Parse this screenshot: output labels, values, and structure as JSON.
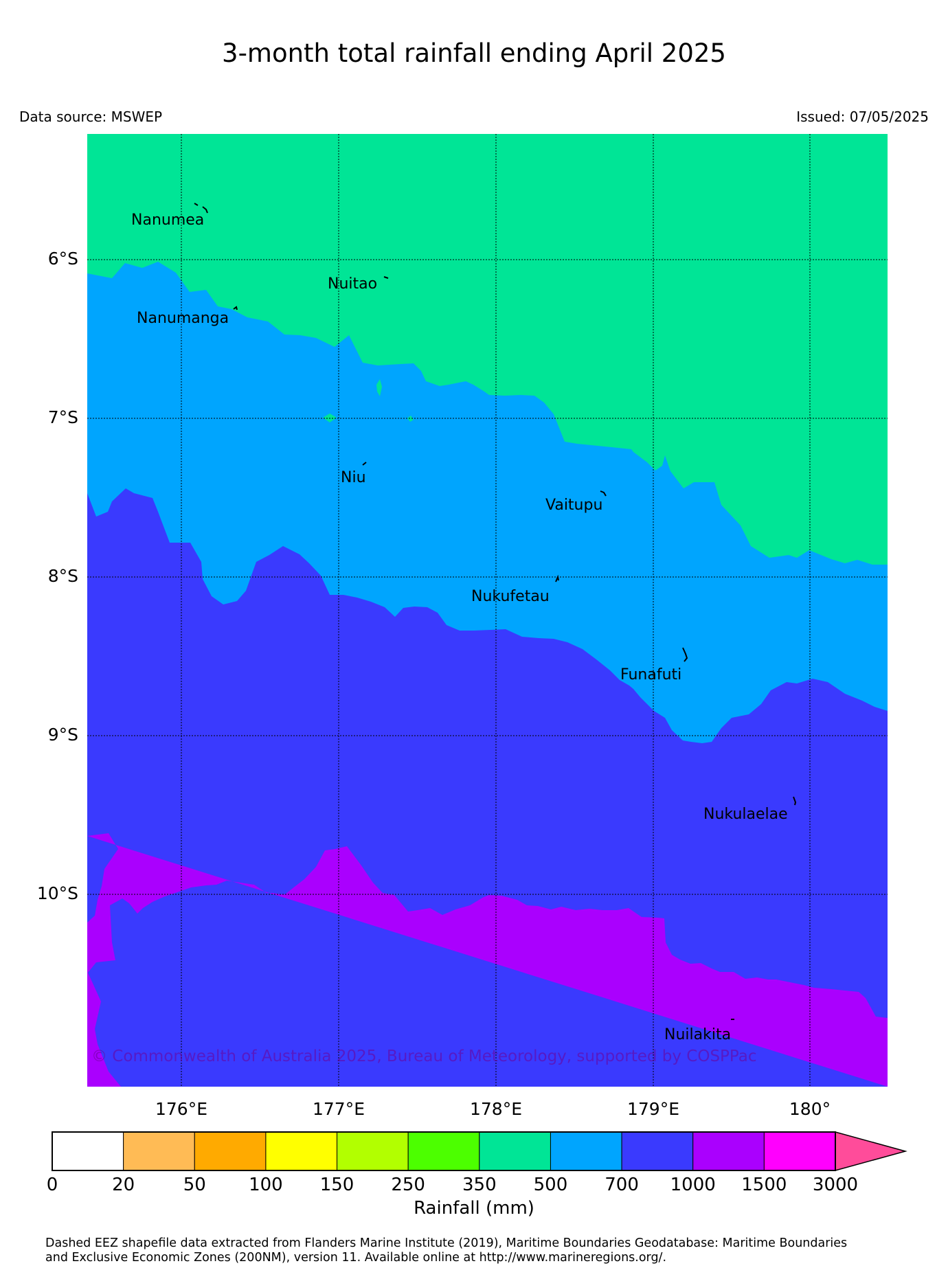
{
  "header": {
    "title": "3-month total rainfall ending April 2025",
    "data_source": "Data source: MSWEP",
    "issued": "Issued: 07/05/2025"
  },
  "map": {
    "latitude_labels": [
      "6°S",
      "7°S",
      "8°S",
      "9°S",
      "10°S"
    ],
    "longitude_labels": [
      "176°E",
      "177°E",
      "178°E",
      "179°E",
      "180°"
    ],
    "islands": [
      {
        "name": "Nanumea"
      },
      {
        "name": "Nuitao"
      },
      {
        "name": "Nanumanga"
      },
      {
        "name": "Niu"
      },
      {
        "name": "Vaitupu"
      },
      {
        "name": "Nukufetau"
      },
      {
        "name": "Funafuti"
      },
      {
        "name": "Nukulaelae"
      },
      {
        "name": "Nuilakita"
      }
    ],
    "copyright": "© Commonwealth of Australia 2025, Bureau of Meteorology, supported by COSPPac",
    "region_colors": {
      "350_500": "#00e596",
      "500_700": "#00a5fe",
      "700_1000": "#3a3afe",
      "1000_1500": "#aa00fe"
    }
  },
  "colorbar": {
    "label": "Rainfall (mm)",
    "ticks": [
      "0",
      "20",
      "50",
      "100",
      "150",
      "250",
      "350",
      "500",
      "700",
      "1000",
      "1500",
      "3000"
    ],
    "colors": [
      "#ffffff",
      "#ffbb55",
      "#ffaa00",
      "#ffff00",
      "#b2ff00",
      "#4cff00",
      "#00e596",
      "#00a5fe",
      "#3a3afe",
      "#aa00fe",
      "#ff00fe"
    ],
    "extend_color": "#ff4c9a"
  },
  "footnote": {
    "line1": "Dashed EEZ shapefile data extracted from Flanders Marine Institute (2019), Maritime Boundaries Geodatabase: Maritime Boundaries",
    "line2": "and Exclusive Economic Zones (200NM), version 11. Available online at http://www.marineregions.org/."
  }
}
